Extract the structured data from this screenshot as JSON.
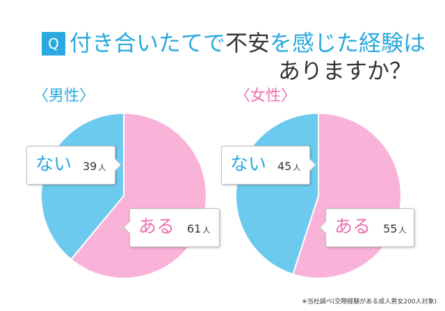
{
  "question": {
    "badge": "Q",
    "line1_a": "付き合いたてで",
    "line1_b": "不安",
    "line1_c": "を感じた経験は",
    "line2": "ありますか？"
  },
  "chart_data": [
    {
      "type": "pie",
      "title": "〈男性〉",
      "unit": "人",
      "slices": [
        {
          "label": "ある",
          "value": 61,
          "color": "#f9b3d8"
        },
        {
          "label": "ない",
          "value": 39,
          "color": "#6ccaee"
        }
      ]
    },
    {
      "type": "pie",
      "title": "〈女性〉",
      "unit": "人",
      "slices": [
        {
          "label": "ある",
          "value": 55,
          "color": "#f9b3d8"
        },
        {
          "label": "ない",
          "value": 45,
          "color": "#6ccaee"
        }
      ]
    }
  ],
  "source_note": "※当社調べ(交際経験がある成人男女200人対象)"
}
